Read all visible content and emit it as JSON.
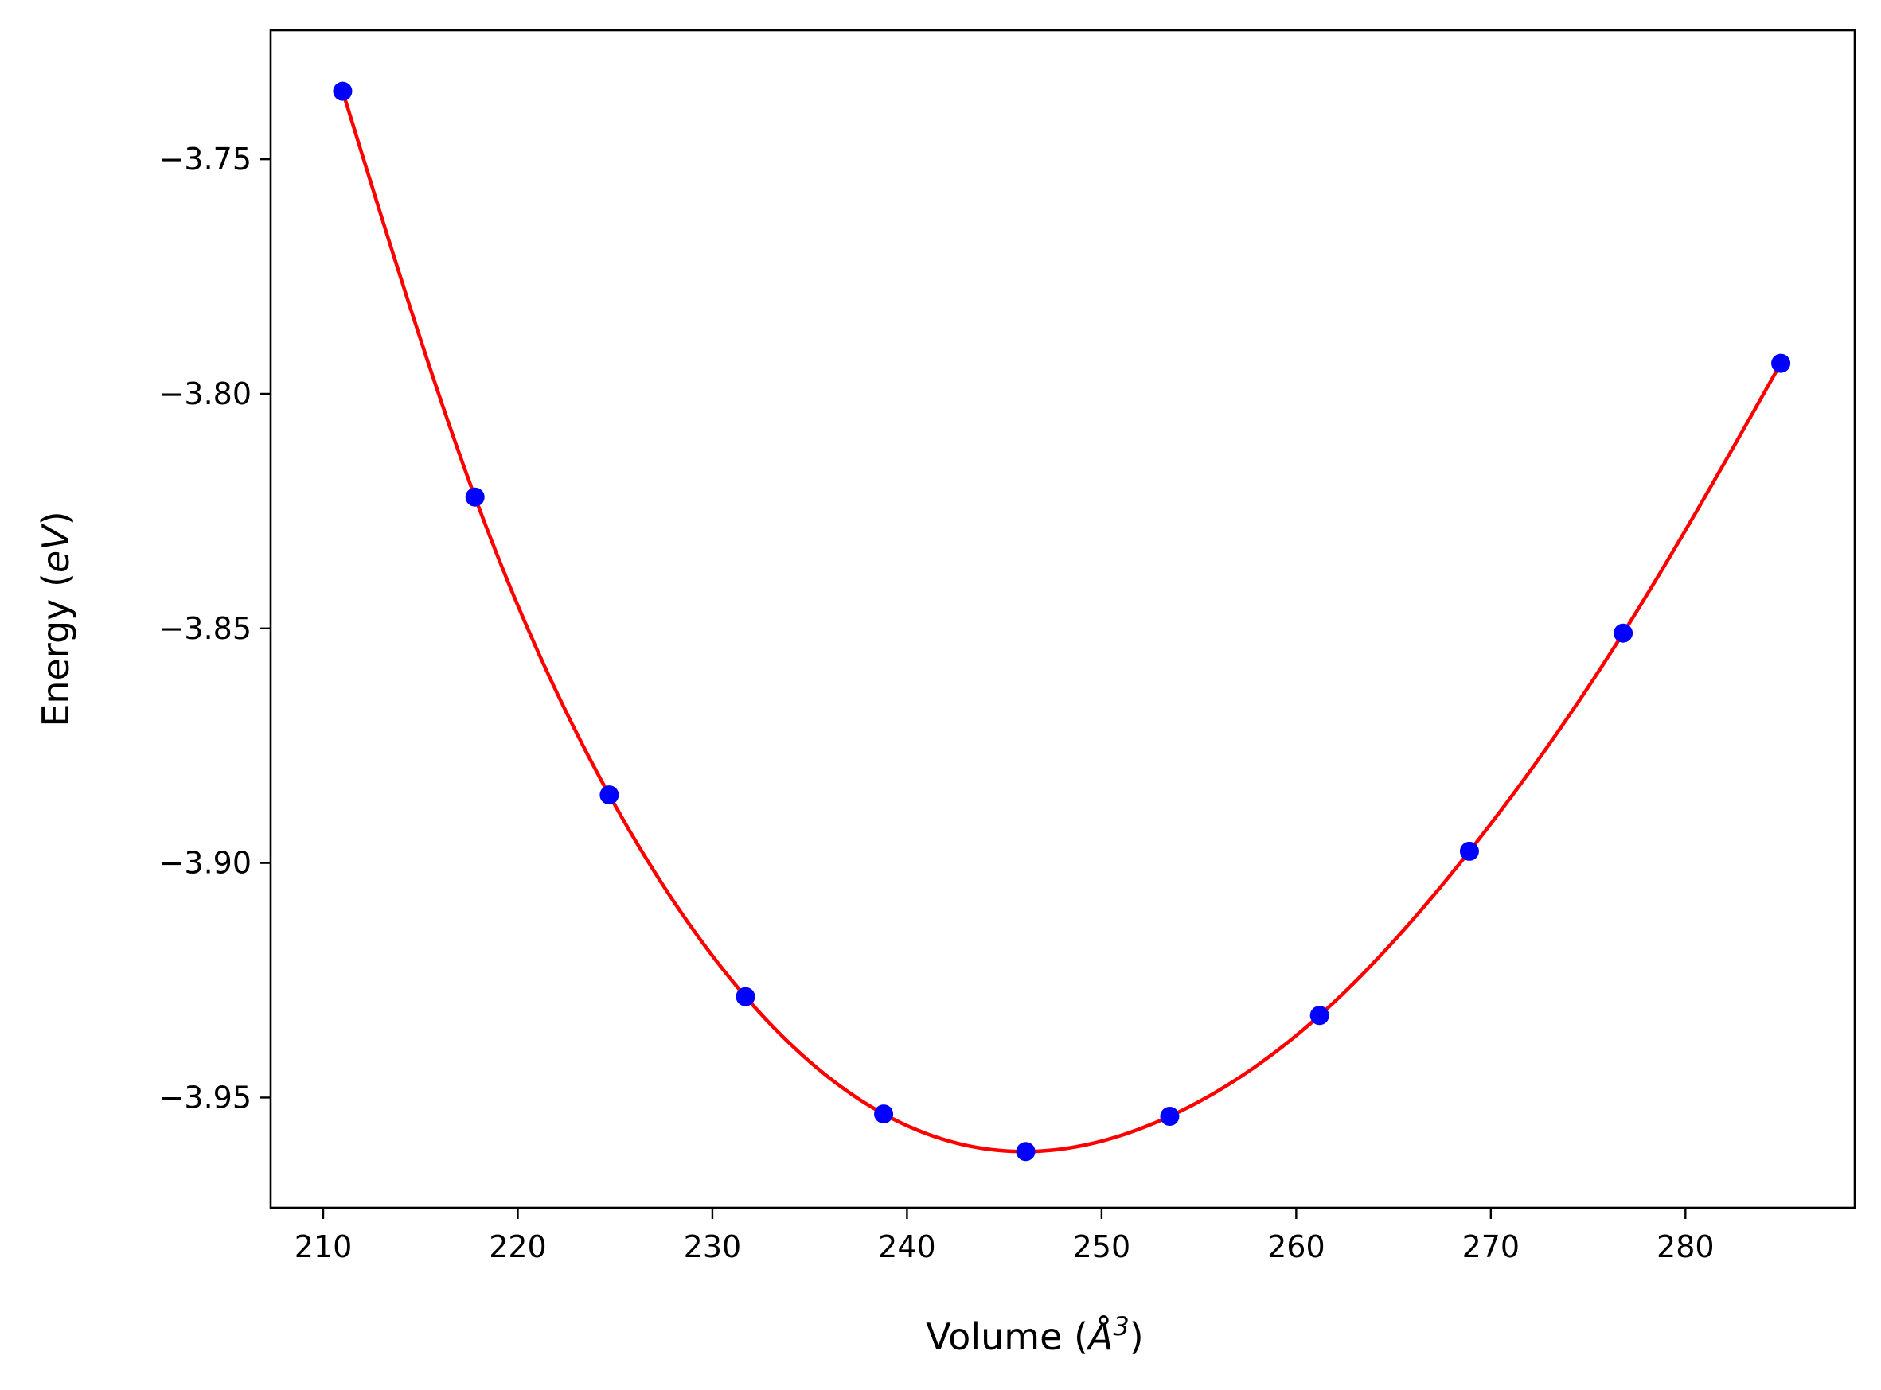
{
  "chart_data": {
    "type": "scatter",
    "xlabel": "Volume (Å³)",
    "xlabel_parts": {
      "prefix": "Volume (",
      "symbol": "Å",
      "exponent": "3",
      "suffix": ")"
    },
    "ylabel": "Energy (eV)",
    "ylabel_parts": {
      "prefix": "Energy (",
      "unit": "eV",
      "suffix": ")"
    },
    "xlim": [
      207.3,
      288.7
    ],
    "ylim": [
      -3.9735,
      -3.7225
    ],
    "x_ticks": [
      210,
      220,
      230,
      240,
      250,
      260,
      270,
      280
    ],
    "y_ticks": [
      -3.75,
      -3.8,
      -3.85,
      -3.9,
      -3.95
    ],
    "y_tick_labels": [
      "−3.75",
      "−3.80",
      "−3.85",
      "−3.90",
      "−3.95"
    ],
    "grid": false,
    "series": [
      {
        "kind": "points",
        "color": "#0000ff",
        "x": [
          211.0,
          217.8,
          224.7,
          231.7,
          238.8,
          246.1,
          253.5,
          261.2,
          268.9,
          276.8,
          284.9
        ],
        "y": [
          -3.7355,
          -3.822,
          -3.8855,
          -3.9285,
          -3.9535,
          -3.9615,
          -3.954,
          -3.9325,
          -3.8975,
          -3.851,
          -3.7935
        ]
      },
      {
        "kind": "fit-curve",
        "color": "#ff0000",
        "x_range": [
          211.0,
          284.9
        ]
      }
    ]
  }
}
